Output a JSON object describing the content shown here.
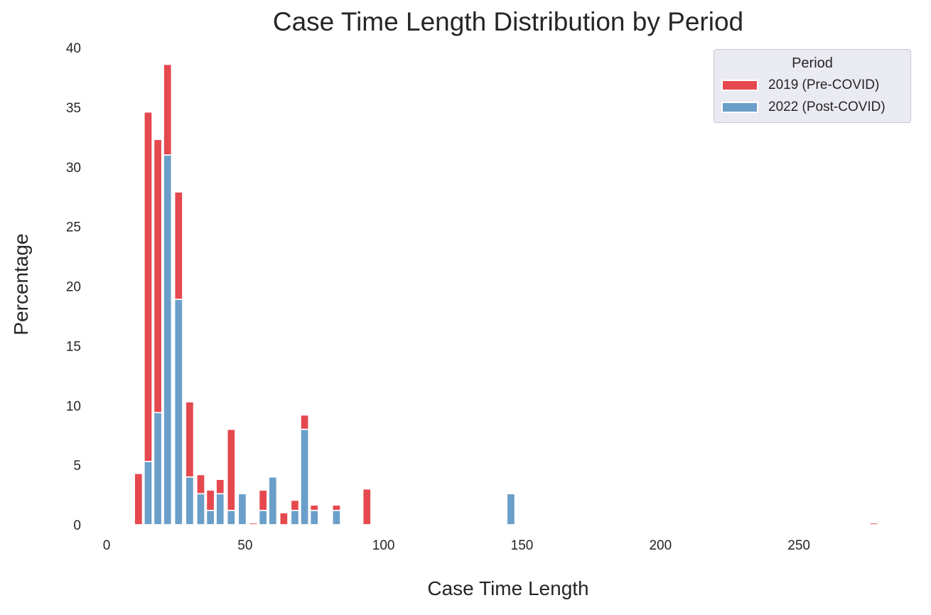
{
  "chart_data": {
    "type": "bar",
    "stacked": true,
    "title": "Case Time Length Distribution by Period",
    "xlabel": "Case Time Length",
    "ylabel": "Percentage",
    "xlim": [
      0,
      290
    ],
    "ylim": [
      0,
      40
    ],
    "xticks": [
      0,
      50,
      100,
      150,
      200,
      250
    ],
    "yticks": [
      0,
      5,
      10,
      15,
      20,
      25,
      30,
      35,
      40
    ],
    "grid": false,
    "legend_title": "Period",
    "legend_position": "top-right",
    "bar_width": 2.9,
    "x": [
      11.5,
      15,
      18.5,
      22,
      26,
      30,
      34,
      37.5,
      41,
      45,
      49,
      53,
      56.5,
      60,
      64,
      68,
      71.5,
      75,
      83,
      94,
      146,
      277
    ],
    "series": [
      {
        "name": "2022 (Post-COVID)",
        "color": "#6a9fc9",
        "values": [
          0,
          5.3,
          9.4,
          31.0,
          18.9,
          4.0,
          2.6,
          1.2,
          2.6,
          1.2,
          2.6,
          0,
          1.2,
          4.0,
          0,
          1.2,
          8.0,
          1.2,
          1.2,
          0,
          2.6,
          0
        ]
      },
      {
        "name": "2019 (Pre-COVID)",
        "color": "#e5484e",
        "values": [
          4.3,
          29.3,
          22.9,
          7.6,
          9.0,
          6.3,
          1.6,
          1.7,
          1.2,
          6.8,
          0,
          0.15,
          1.7,
          0,
          1.0,
          0.85,
          1.2,
          0.45,
          0.45,
          3.0,
          0,
          0.15
        ]
      }
    ]
  }
}
